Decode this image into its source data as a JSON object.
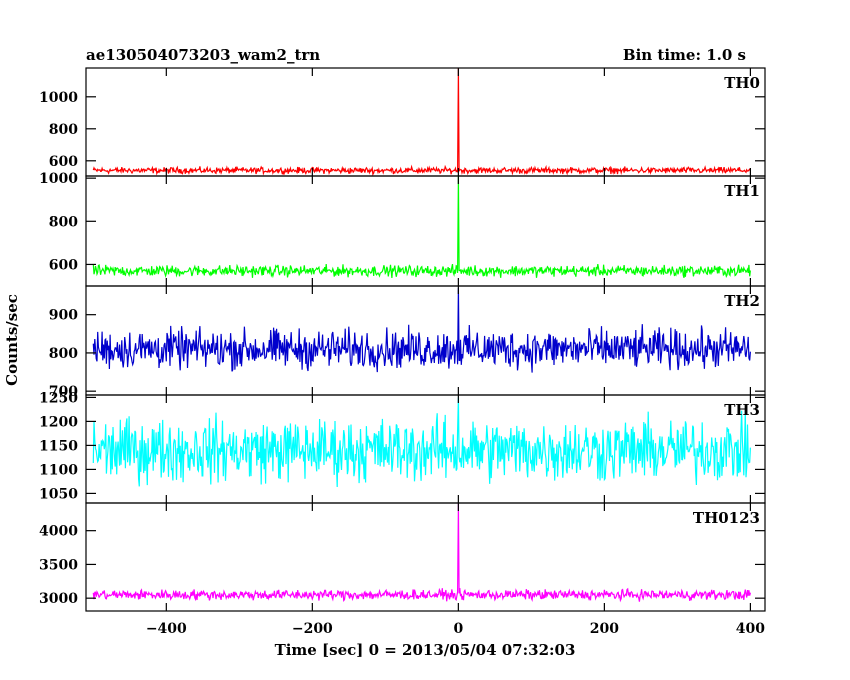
{
  "header": {
    "obs_id": "ae130504073203_wam2_trn",
    "bin_time": "Bin time: 1.0 s"
  },
  "chart_data": {
    "type": "line",
    "xlabel": "Time [sec] 0 = 2013/05/04 07:32:03",
    "ylabel": "Counts/sec",
    "xlim": [
      -510,
      420
    ],
    "x_ticks": [
      -400,
      -200,
      0,
      200,
      400
    ],
    "x_tick_labels": [
      "−400",
      "−200",
      "0",
      "200",
      "400"
    ],
    "x_range_data": [
      -500,
      400
    ],
    "panels": [
      {
        "name": "TH0",
        "color": "#ff0000",
        "ylim": [
          505,
          1180
        ],
        "y_ticks": [
          600,
          800,
          1000
        ],
        "y_tick_labels": [
          "600",
          "800",
          "1000"
        ],
        "baseline": 540,
        "amplitude": 28,
        "peak_x": 0,
        "peak_value": 1180
      },
      {
        "name": "TH1",
        "color": "#00ff00",
        "ylim": [
          500,
          1010
        ],
        "y_ticks": [
          600,
          800,
          1000
        ],
        "y_tick_labels": [
          "600",
          "800",
          "1000"
        ],
        "baseline": 570,
        "amplitude": 38,
        "peak_x": 0,
        "peak_value": 1010
      },
      {
        "name": "TH2",
        "color": "#0000cc",
        "ylim": [
          690,
          975
        ],
        "y_ticks": [
          700,
          800,
          900
        ],
        "y_tick_labels": [
          "700",
          "800",
          "900"
        ],
        "baseline": 810,
        "amplitude": 75,
        "peak_x": 0,
        "peak_value": 970
      },
      {
        "name": "TH3",
        "color": "#00ffff",
        "ylim": [
          1030,
          1255
        ],
        "y_ticks": [
          1050,
          1100,
          1150,
          1200,
          1250
        ],
        "y_tick_labels": [
          "1050",
          "1100",
          "1150",
          "1200",
          "1250"
        ],
        "baseline": 1140,
        "amplitude": 95,
        "peak_x": 0,
        "peak_value": 1250
      },
      {
        "name": "TH0123",
        "color": "#ff00ff",
        "ylim": [
          2810,
          4410
        ],
        "y_ticks": [
          3000,
          3500,
          4000
        ],
        "y_tick_labels": [
          "3000",
          "3500",
          "4000"
        ],
        "baseline": 3050,
        "amplitude": 110,
        "peak_x": 0,
        "peak_value": 4400
      }
    ]
  }
}
